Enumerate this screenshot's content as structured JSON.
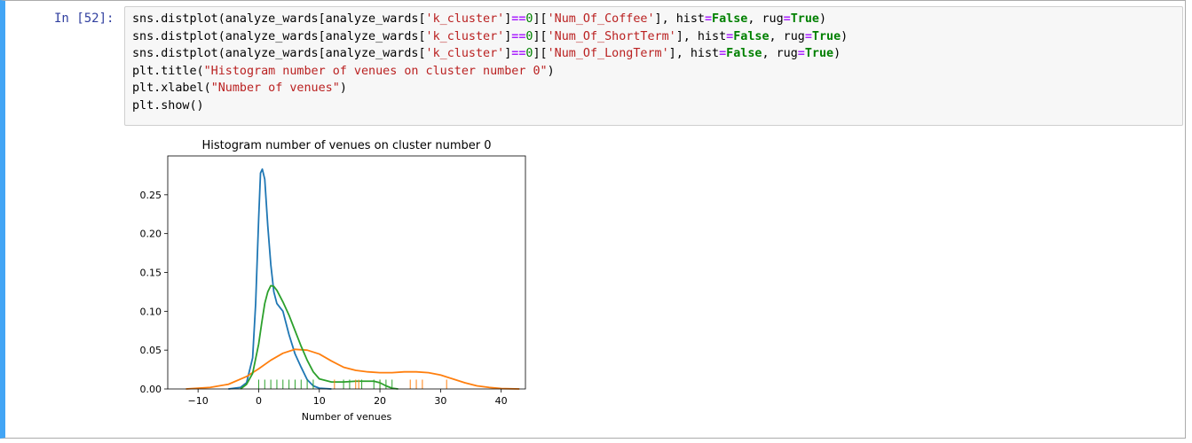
{
  "cell": {
    "prompt": "In [52]:",
    "code_lines": [
      [
        {
          "t": "sns.distplot(analyze_wards[analyze_wards["
        },
        {
          "t": "'k_cluster'",
          "c": "str"
        },
        {
          "t": "]"
        },
        {
          "t": "==",
          "c": "op"
        },
        {
          "t": "0",
          "c": "num"
        },
        {
          "t": "]["
        },
        {
          "t": "'Num_Of_Coffee'",
          "c": "str"
        },
        {
          "t": "], hist"
        },
        {
          "t": "=",
          "c": "op"
        },
        {
          "t": "False",
          "c": "kw"
        },
        {
          "t": ", rug"
        },
        {
          "t": "=",
          "c": "op"
        },
        {
          "t": "True",
          "c": "kw"
        },
        {
          "t": ")"
        }
      ],
      [
        {
          "t": "sns.distplot(analyze_wards[analyze_wards["
        },
        {
          "t": "'k_cluster'",
          "c": "str"
        },
        {
          "t": "]"
        },
        {
          "t": "==",
          "c": "op"
        },
        {
          "t": "0",
          "c": "num"
        },
        {
          "t": "]["
        },
        {
          "t": "'Num_Of_ShortTerm'",
          "c": "str"
        },
        {
          "t": "], hist"
        },
        {
          "t": "=",
          "c": "op"
        },
        {
          "t": "False",
          "c": "kw"
        },
        {
          "t": ", rug"
        },
        {
          "t": "=",
          "c": "op"
        },
        {
          "t": "True",
          "c": "kw"
        },
        {
          "t": ")"
        }
      ],
      [
        {
          "t": "sns.distplot(analyze_wards[analyze_wards["
        },
        {
          "t": "'k_cluster'",
          "c": "str"
        },
        {
          "t": "]"
        },
        {
          "t": "==",
          "c": "op"
        },
        {
          "t": "0",
          "c": "num"
        },
        {
          "t": "]["
        },
        {
          "t": "'Num_Of_LongTerm'",
          "c": "str"
        },
        {
          "t": "], hist"
        },
        {
          "t": "=",
          "c": "op"
        },
        {
          "t": "False",
          "c": "kw"
        },
        {
          "t": ", rug"
        },
        {
          "t": "=",
          "c": "op"
        },
        {
          "t": "True",
          "c": "kw"
        },
        {
          "t": ")"
        }
      ],
      [
        {
          "t": "plt.title("
        },
        {
          "t": "\"Histogram number of venues on cluster number 0\"",
          "c": "str"
        },
        {
          "t": ")"
        }
      ],
      [
        {
          "t": "plt.xlabel("
        },
        {
          "t": "\"Number of venues\"",
          "c": "str"
        },
        {
          "t": ")"
        }
      ],
      [
        {
          "t": "plt.show()"
        }
      ]
    ]
  },
  "colors": {
    "cell_border_accent": "#42a5f5",
    "prompt": "#303f9f",
    "code_bg": "#f7f7f7",
    "string": "#ba2121",
    "number": "#008000",
    "operator": "#aa22ff",
    "keyword": "#008000"
  },
  "chart_data": {
    "type": "line",
    "title": "Histogram number of venues on cluster number 0",
    "xlabel": "Number of venues",
    "ylabel": "",
    "xlim": [
      -15,
      44
    ],
    "ylim": [
      0,
      0.3
    ],
    "xticks": [
      -10,
      0,
      10,
      20,
      30,
      40
    ],
    "yticks": [
      0.0,
      0.05,
      0.1,
      0.15,
      0.2,
      0.25
    ],
    "xtick_labels": [
      "−10",
      "0",
      "10",
      "20",
      "30",
      "40"
    ],
    "ytick_labels": [
      "0.00",
      "0.05",
      "0.10",
      "0.15",
      "0.20",
      "0.25"
    ],
    "grid": false,
    "legend": "none",
    "series": [
      {
        "color": "#1f77b4",
        "x": [
          -5,
          -3,
          -2,
          -1,
          -0.5,
          0,
          0.3,
          0.6,
          1,
          1.5,
          2,
          2.5,
          3,
          3.5,
          4,
          4.5,
          5,
          6,
          7,
          8,
          9,
          10,
          12
        ],
        "y": [
          0.0,
          0.002,
          0.008,
          0.04,
          0.11,
          0.22,
          0.278,
          0.283,
          0.27,
          0.21,
          0.16,
          0.125,
          0.11,
          0.105,
          0.1,
          0.085,
          0.07,
          0.045,
          0.028,
          0.012,
          0.004,
          0.001,
          0.0
        ],
        "rug": []
      },
      {
        "color": "#ff7f0e",
        "x": [
          -12,
          -8,
          -5,
          -2,
          0,
          2,
          4,
          6,
          8,
          10,
          12,
          14,
          16,
          18,
          20,
          22,
          24,
          26,
          28,
          30,
          32,
          34,
          36,
          38,
          40,
          43
        ],
        "y": [
          0.0,
          0.002,
          0.006,
          0.016,
          0.026,
          0.037,
          0.046,
          0.051,
          0.05,
          0.045,
          0.036,
          0.028,
          0.024,
          0.022,
          0.021,
          0.021,
          0.022,
          0.022,
          0.021,
          0.018,
          0.013,
          0.008,
          0.004,
          0.002,
          0.0005,
          0.0
        ],
        "rug": [
          12.5,
          16,
          16.5,
          20,
          25,
          26,
          27,
          31
        ]
      },
      {
        "color": "#2ca02c",
        "x": [
          -3,
          -2,
          -1,
          0,
          0.5,
          1,
          1.5,
          2,
          2.5,
          3,
          4,
          5,
          6,
          7,
          8,
          9,
          10,
          12,
          14,
          16,
          18,
          19,
          20,
          21,
          22,
          23
        ],
        "y": [
          0.0,
          0.006,
          0.02,
          0.058,
          0.085,
          0.11,
          0.125,
          0.133,
          0.132,
          0.127,
          0.112,
          0.095,
          0.075,
          0.055,
          0.037,
          0.022,
          0.013,
          0.009,
          0.009,
          0.01,
          0.01,
          0.01,
          0.008,
          0.004,
          0.001,
          0.0
        ],
        "rug": [
          0,
          1,
          2,
          3,
          4,
          5,
          6,
          7,
          8,
          9,
          14,
          15,
          17,
          19,
          20,
          21,
          22
        ]
      }
    ]
  }
}
